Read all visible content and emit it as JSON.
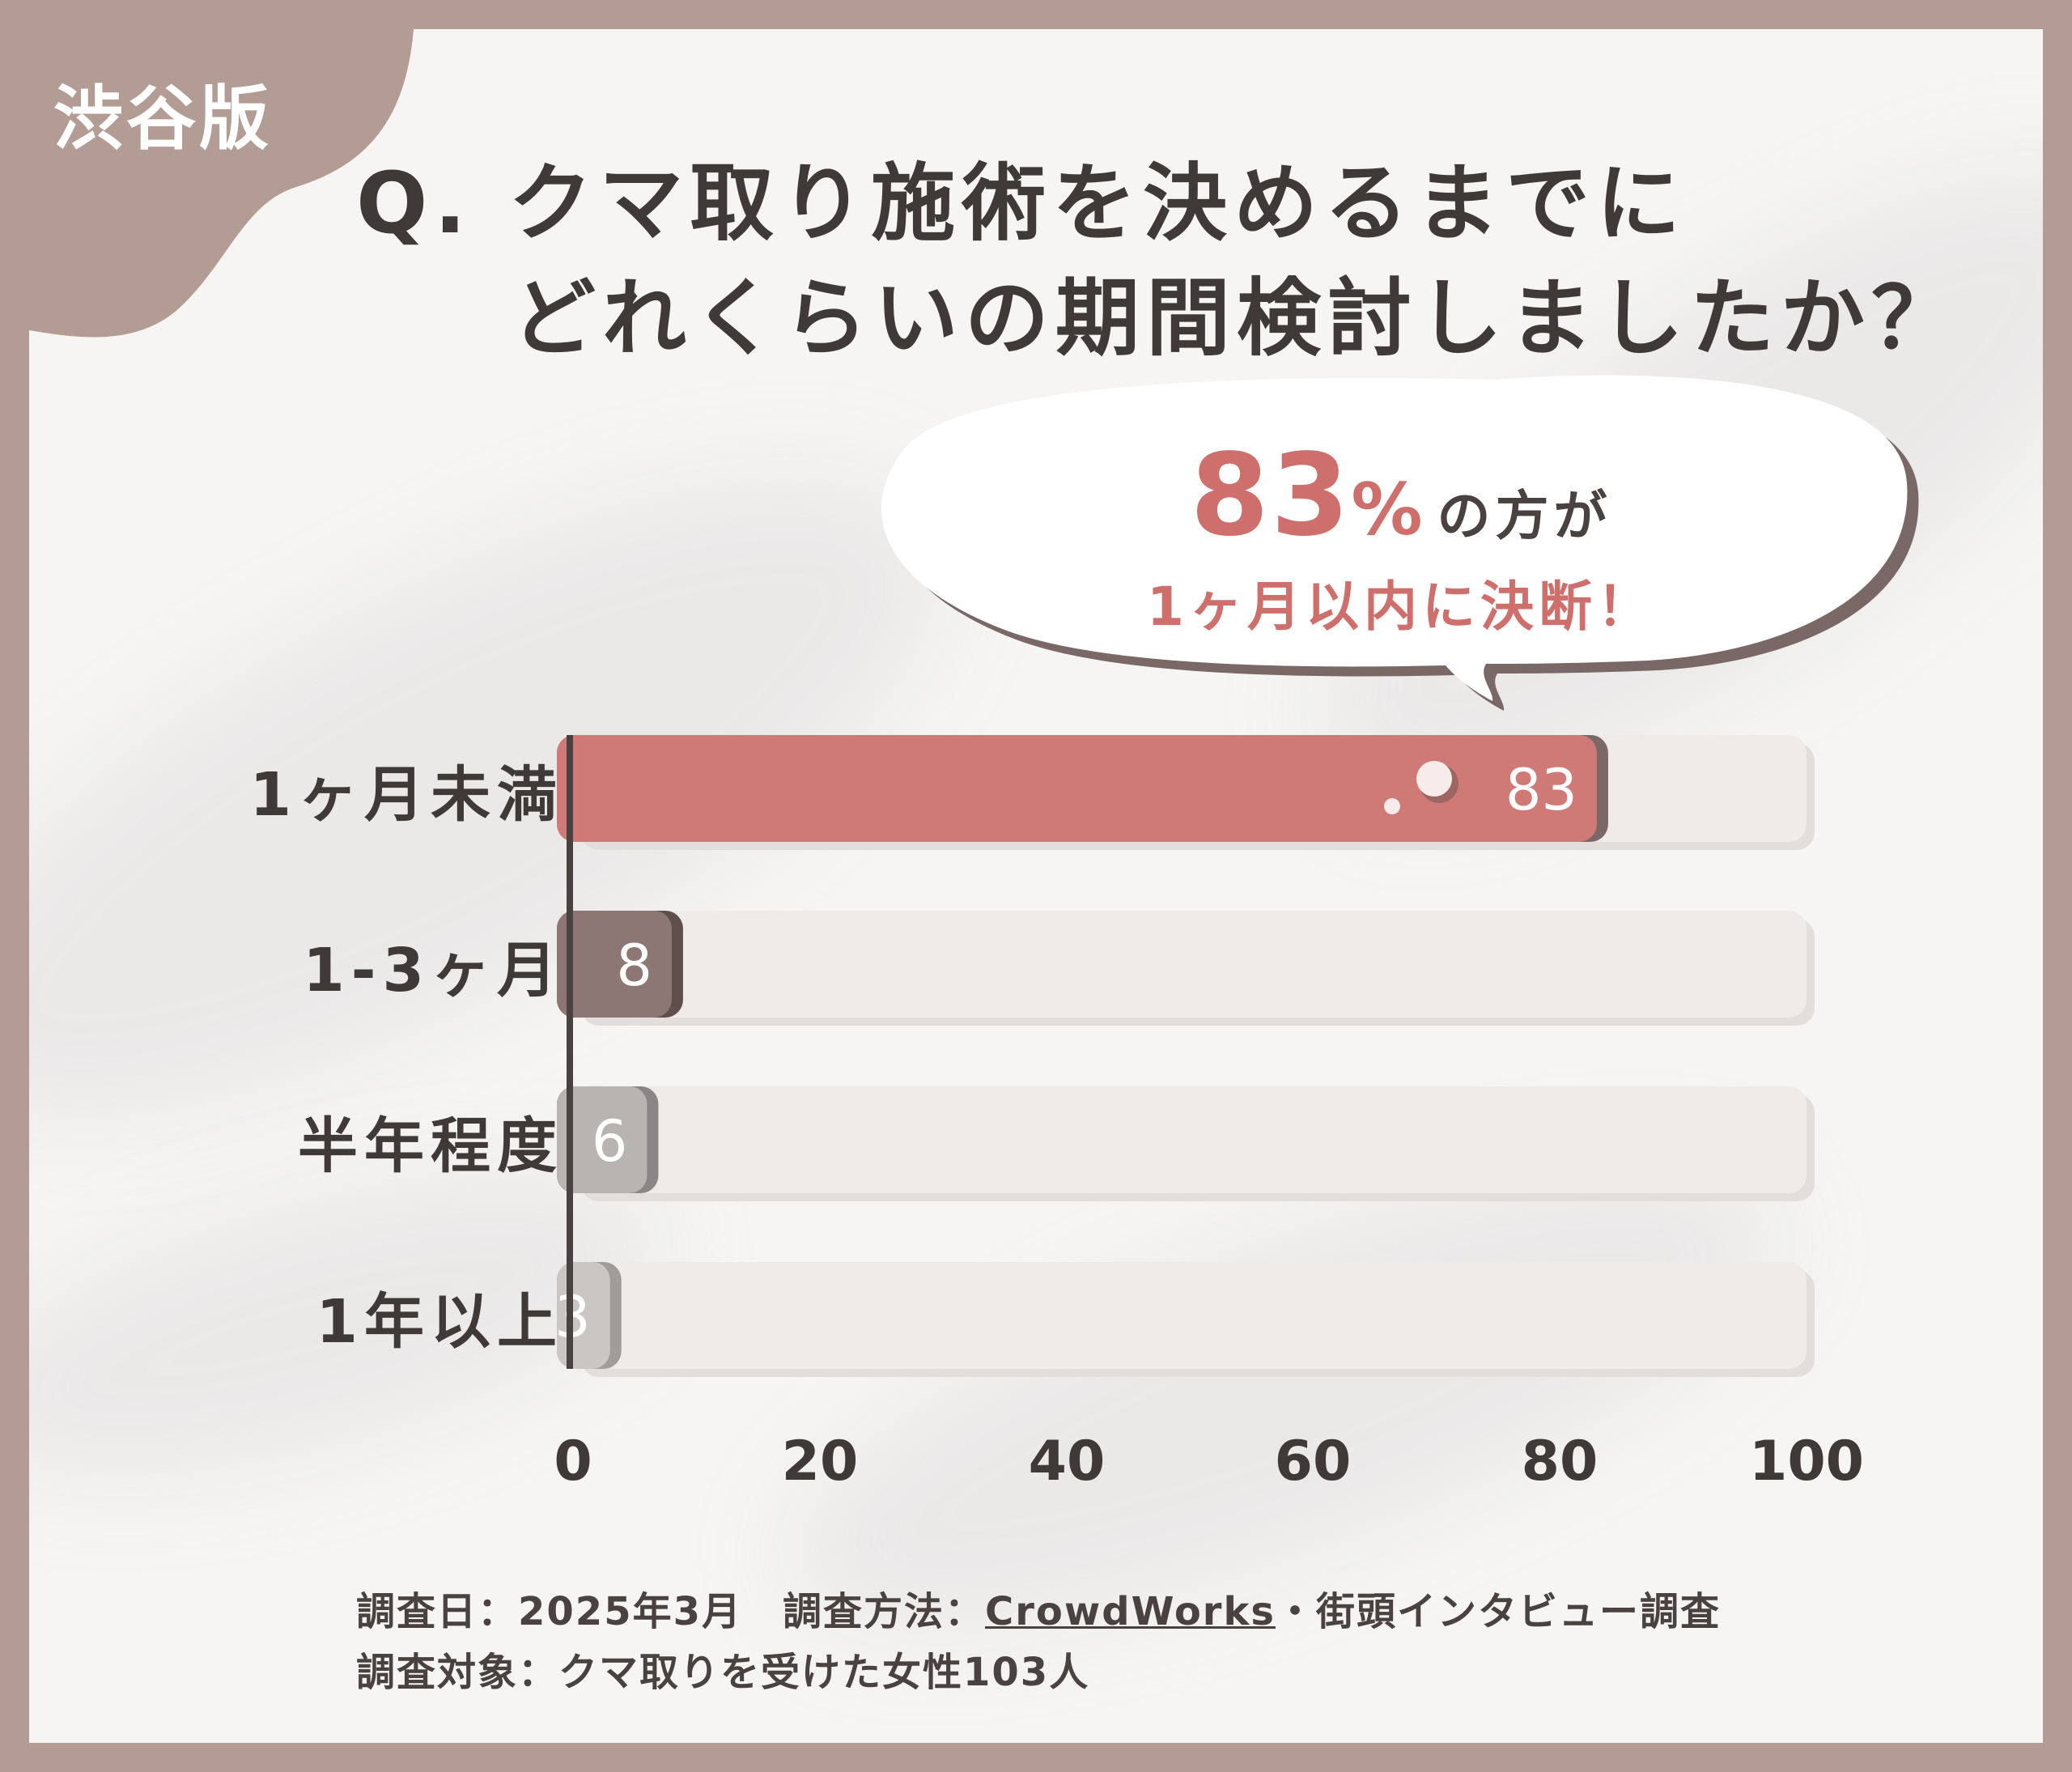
{
  "badge": "渋谷版",
  "title": {
    "line1": "Q. クマ取り施術を決めるまでに",
    "line2": "どれくらいの期間検討しましたか？"
  },
  "callout": {
    "percent": "83",
    "percent_sign": "%",
    "rest": "の方が",
    "sub": "1ヶ月以内に決断！"
  },
  "chart_data": {
    "type": "bar",
    "orientation": "horizontal",
    "categories": [
      "1ヶ月未満",
      "1-3ヶ月",
      "半年程度",
      "1年以上"
    ],
    "values": [
      83,
      8,
      6,
      3
    ],
    "value_labels": [
      "83",
      "8",
      "6",
      "3"
    ],
    "xlim": [
      0,
      100
    ],
    "ticks": [
      "0",
      "20",
      "40",
      "60",
      "80",
      "100"
    ],
    "colors": [
      "#cf7a77",
      "#8c7775",
      "#b8b4b2",
      "#c9c6c4"
    ],
    "shadow_colors": [
      "#7a6866",
      "#5e4f4d",
      "#8a8685",
      "#a09c9a"
    ],
    "track_color": "#efebe9"
  },
  "footer": {
    "line1_prefix": "調査日：2025年3月　調査方法：",
    "line1_link": "CrowdWorks",
    "line1_suffix": "・街頭インタビュー調査",
    "line2": "調査対象：クマ取りを受けた女性103人"
  }
}
